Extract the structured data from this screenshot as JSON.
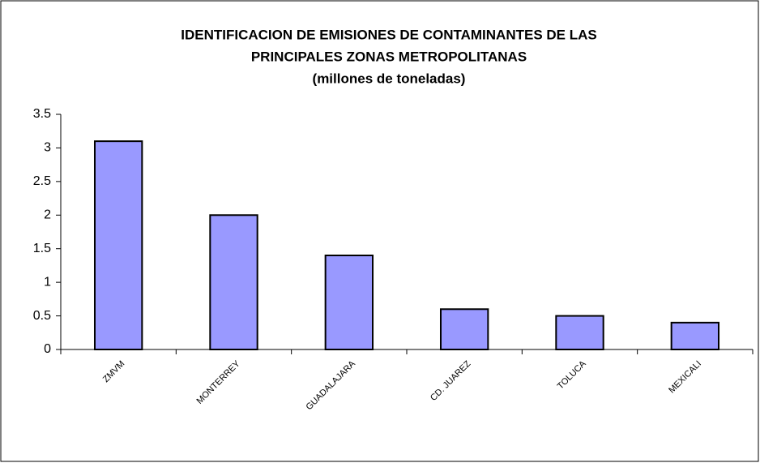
{
  "chart_data": {
    "type": "bar",
    "title": [
      "IDENTIFICACION DE EMISIONES DE CONTAMINANTES DE LAS",
      "PRINCIPALES ZONAS METROPOLITANAS"
    ],
    "subtitle": "(millones de toneladas)",
    "categories": [
      "ZMVM",
      "MONTERREY",
      "GUADALAJARA",
      "CD. JUAREZ",
      "TOLUCA",
      "MEXICALI"
    ],
    "values": [
      3.1,
      2.0,
      1.4,
      0.6,
      0.5,
      0.4
    ],
    "color": "#9999ff",
    "ylim": [
      0,
      3.5
    ],
    "yticks": [
      0,
      0.5,
      1,
      1.5,
      2,
      2.5,
      3,
      3.5
    ],
    "grid": false
  }
}
